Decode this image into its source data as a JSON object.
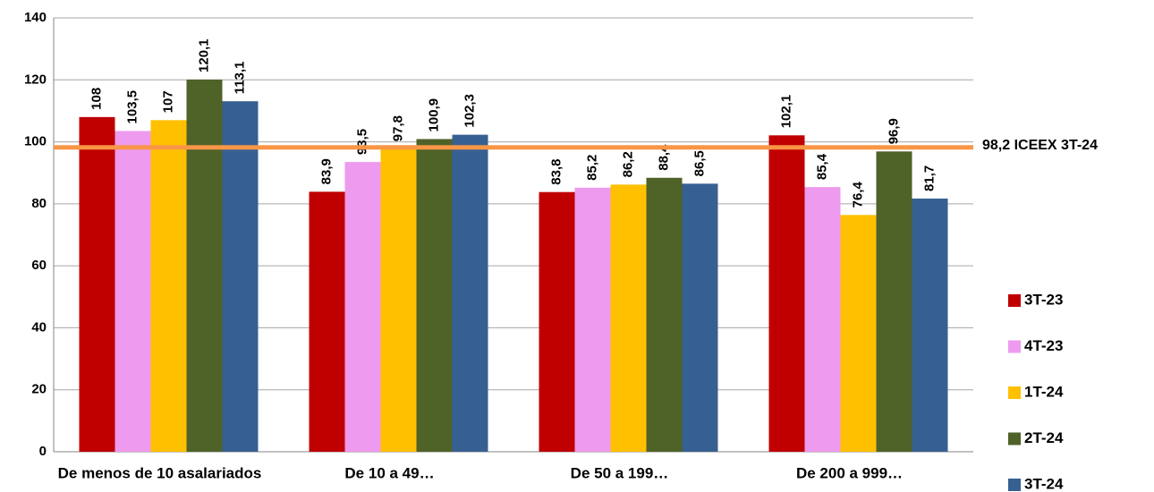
{
  "chart_data": {
    "type": "bar",
    "categories": [
      "De menos de 10 asalariados",
      "De 10 a 49…",
      "De 50 a 199…",
      "De 200 a 999…"
    ],
    "series": [
      {
        "name": "3T-23",
        "color": "#c00000",
        "values": [
          108,
          83.9,
          83.8,
          102.1
        ],
        "value_labels": [
          "108",
          "83,9",
          "83,8",
          "102,1"
        ]
      },
      {
        "name": "4T-23",
        "color": "#ee9aee",
        "values": [
          103.5,
          93.5,
          85.2,
          85.4
        ],
        "value_labels": [
          "103,5",
          "93,5",
          "85,2",
          "85,4"
        ]
      },
      {
        "name": "1T-24",
        "color": "#ffc000",
        "values": [
          107,
          97.8,
          86.2,
          76.4
        ],
        "value_labels": [
          "107",
          "97,8",
          "86,2",
          "76,4"
        ]
      },
      {
        "name": "2T-24",
        "color": "#4f6228",
        "values": [
          120.1,
          100.9,
          88.4,
          96.9
        ],
        "value_labels": [
          "120,1",
          "100,9",
          "88,4",
          "96,9"
        ]
      },
      {
        "name": "3T-24",
        "color": "#376092",
        "values": [
          113.1,
          102.3,
          86.5,
          81.7
        ],
        "value_labels": [
          "113,1",
          "102,3",
          "86,5",
          "81,7"
        ]
      }
    ],
    "reference_line": {
      "value": 98.2,
      "label": "98,2 ICEEX 3T-24",
      "color": "#f79646"
    },
    "ylim": [
      0,
      140
    ],
    "yticks": [
      0,
      20,
      40,
      60,
      80,
      100,
      120,
      140
    ],
    "grid": true,
    "legend": "right"
  }
}
